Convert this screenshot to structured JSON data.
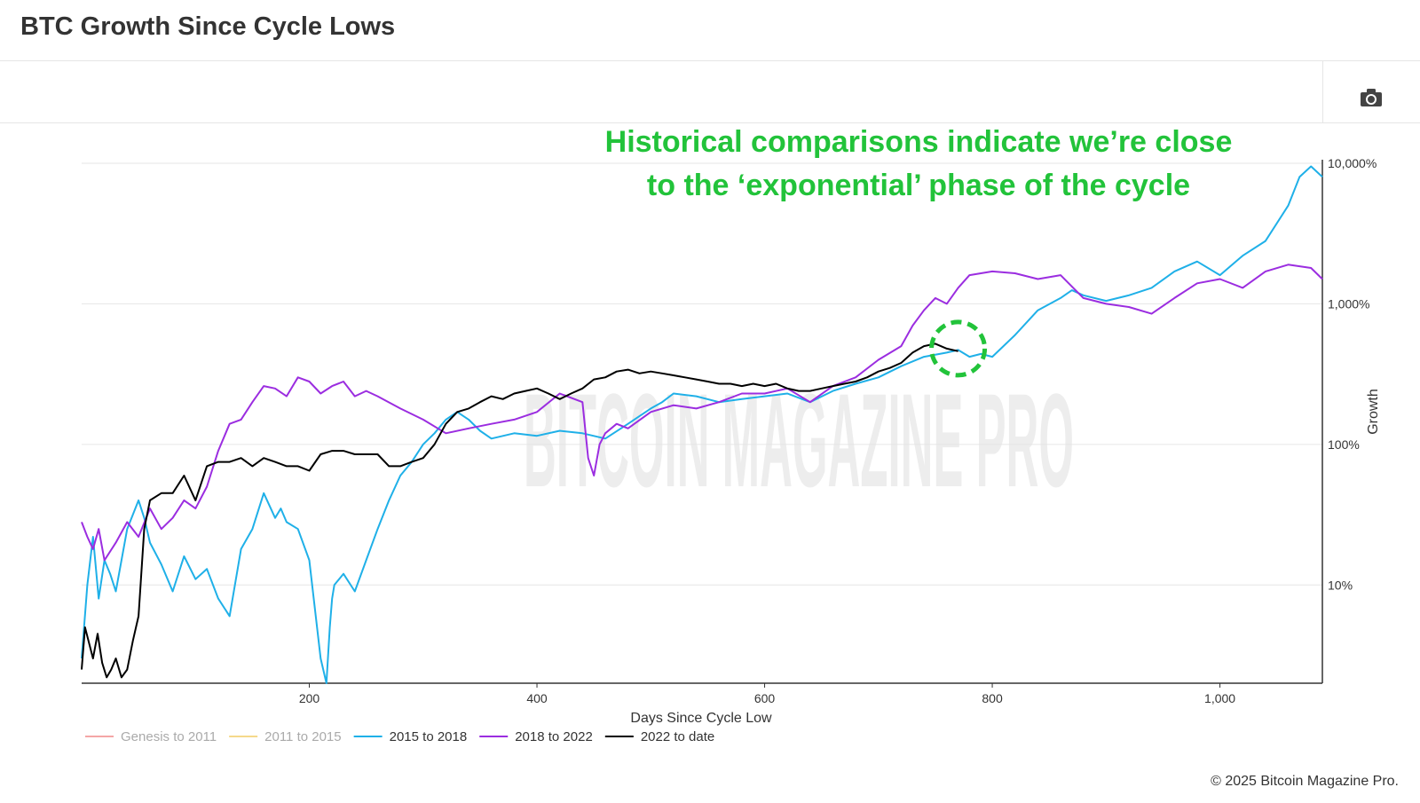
{
  "page": {
    "title": "BTC Growth Since Cycle Lows",
    "copyright": "© 2025 Bitcoin Magazine Pro.",
    "watermark_text": "BITCOIN MAGAZINE PRO",
    "camera_icon": "camera-icon"
  },
  "chart_data": {
    "type": "line",
    "title": "BTC Growth Since Cycle Lows",
    "xlabel": "Days Since Cycle Low",
    "ylabel": "Growth",
    "xlim": [
      0,
      1090
    ],
    "ylim": [
      2,
      10000
    ],
    "y_scale": "log",
    "x_ticks": [
      200,
      400,
      600,
      800,
      1000
    ],
    "x_tick_labels": [
      "200",
      "400",
      "600",
      "800",
      "1,000"
    ],
    "y_ticks": [
      10,
      100,
      1000,
      10000
    ],
    "y_tick_labels": [
      "10%",
      "100%",
      "1,000%",
      "10,000%"
    ],
    "grid": true,
    "legend_position": "bottom-left",
    "annotation": {
      "lines": [
        "Historical comparisons indicate we’re close",
        "to the ‘exponential’ phase of the cycle"
      ],
      "color": "#22c33a",
      "circle_x": 770,
      "circle_y": 480
    },
    "series": [
      {
        "name": "Genesis to 2011",
        "color": "#f4a6a6",
        "hidden": true,
        "x": [],
        "y": []
      },
      {
        "name": "2011 to 2015",
        "color": "#f5d98b",
        "hidden": true,
        "x": [],
        "y": []
      },
      {
        "name": "2015 to 2018",
        "color": "#1fb0e8",
        "hidden": false,
        "x": [
          0,
          5,
          10,
          15,
          20,
          25,
          30,
          40,
          50,
          55,
          60,
          70,
          80,
          90,
          100,
          110,
          120,
          130,
          140,
          150,
          160,
          170,
          175,
          180,
          190,
          200,
          210,
          215,
          218,
          220,
          222,
          230,
          240,
          250,
          260,
          270,
          280,
          290,
          300,
          310,
          320,
          330,
          340,
          350,
          360,
          380,
          400,
          420,
          440,
          460,
          480,
          500,
          510,
          520,
          540,
          560,
          580,
          600,
          620,
          640,
          660,
          680,
          700,
          720,
          740,
          760,
          770,
          780,
          790,
          800,
          820,
          840,
          860,
          870,
          880,
          900,
          920,
          940,
          960,
          980,
          1000,
          1020,
          1040,
          1060,
          1070,
          1080,
          1090
        ],
        "y": [
          3,
          10,
          22,
          8,
          15,
          12,
          9,
          25,
          40,
          30,
          20,
          14,
          9,
          16,
          11,
          13,
          8,
          6,
          18,
          25,
          45,
          30,
          35,
          28,
          25,
          15,
          3,
          2,
          5,
          8,
          10,
          12,
          9,
          15,
          25,
          40,
          60,
          75,
          100,
          120,
          150,
          170,
          150,
          125,
          110,
          120,
          115,
          125,
          120,
          110,
          140,
          180,
          200,
          230,
          220,
          200,
          210,
          220,
          230,
          200,
          240,
          270,
          300,
          360,
          420,
          450,
          470,
          420,
          440,
          420,
          600,
          900,
          1100,
          1250,
          1150,
          1050,
          1150,
          1300,
          1700,
          2000,
          1600,
          2200,
          2800,
          5000,
          8000,
          9500,
          8000
        ]
      },
      {
        "name": "2018 to 2022",
        "color": "#9b2de0",
        "hidden": false,
        "x": [
          0,
          5,
          10,
          15,
          20,
          30,
          40,
          50,
          60,
          70,
          80,
          90,
          100,
          110,
          120,
          130,
          140,
          150,
          160,
          170,
          180,
          190,
          200,
          210,
          220,
          230,
          240,
          250,
          260,
          280,
          300,
          320,
          340,
          360,
          380,
          400,
          420,
          440,
          445,
          450,
          455,
          460,
          470,
          480,
          500,
          520,
          540,
          560,
          580,
          600,
          620,
          640,
          660,
          680,
          700,
          720,
          730,
          740,
          750,
          760,
          770,
          780,
          800,
          820,
          840,
          860,
          880,
          900,
          920,
          940,
          960,
          980,
          1000,
          1020,
          1040,
          1060,
          1080,
          1090
        ],
        "y": [
          28,
          22,
          18,
          25,
          15,
          20,
          28,
          22,
          35,
          25,
          30,
          40,
          35,
          50,
          90,
          140,
          150,
          200,
          260,
          250,
          220,
          300,
          280,
          230,
          260,
          280,
          220,
          240,
          220,
          180,
          150,
          120,
          130,
          140,
          150,
          170,
          230,
          200,
          80,
          60,
          100,
          120,
          140,
          130,
          170,
          190,
          180,
          200,
          230,
          230,
          250,
          200,
          260,
          300,
          400,
          500,
          700,
          900,
          1100,
          1000,
          1300,
          1600,
          1700,
          1650,
          1500,
          1600,
          1100,
          1000,
          950,
          850,
          1100,
          1400,
          1500,
          1300,
          1700,
          1900,
          1800,
          1500
        ]
      },
      {
        "name": "2022 to date",
        "color": "#000000",
        "hidden": false,
        "x": [
          0,
          3,
          6,
          10,
          14,
          18,
          22,
          26,
          30,
          35,
          40,
          45,
          50,
          55,
          60,
          70,
          80,
          90,
          100,
          110,
          120,
          130,
          140,
          150,
          160,
          170,
          180,
          190,
          200,
          210,
          220,
          230,
          240,
          250,
          260,
          270,
          280,
          290,
          300,
          310,
          320,
          330,
          340,
          350,
          360,
          370,
          380,
          390,
          400,
          410,
          420,
          430,
          440,
          450,
          460,
          470,
          480,
          490,
          500,
          510,
          520,
          530,
          540,
          550,
          560,
          570,
          580,
          590,
          600,
          610,
          620,
          630,
          640,
          650,
          660,
          670,
          680,
          690,
          700,
          710,
          720,
          730,
          740,
          750,
          760,
          770
        ],
        "y": [
          2.5,
          5,
          4,
          3,
          4.5,
          2.8,
          2.2,
          2.5,
          3,
          2.2,
          2.5,
          4,
          6,
          25,
          40,
          45,
          45,
          60,
          40,
          70,
          75,
          75,
          80,
          70,
          80,
          75,
          70,
          70,
          65,
          85,
          90,
          90,
          85,
          85,
          85,
          70,
          70,
          75,
          80,
          100,
          140,
          170,
          180,
          200,
          220,
          210,
          230,
          240,
          250,
          230,
          210,
          230,
          250,
          290,
          300,
          330,
          340,
          320,
          330,
          320,
          310,
          300,
          290,
          280,
          270,
          270,
          260,
          270,
          260,
          270,
          250,
          240,
          240,
          250,
          260,
          270,
          280,
          300,
          330,
          350,
          380,
          450,
          500,
          520,
          480,
          460
        ]
      }
    ]
  }
}
